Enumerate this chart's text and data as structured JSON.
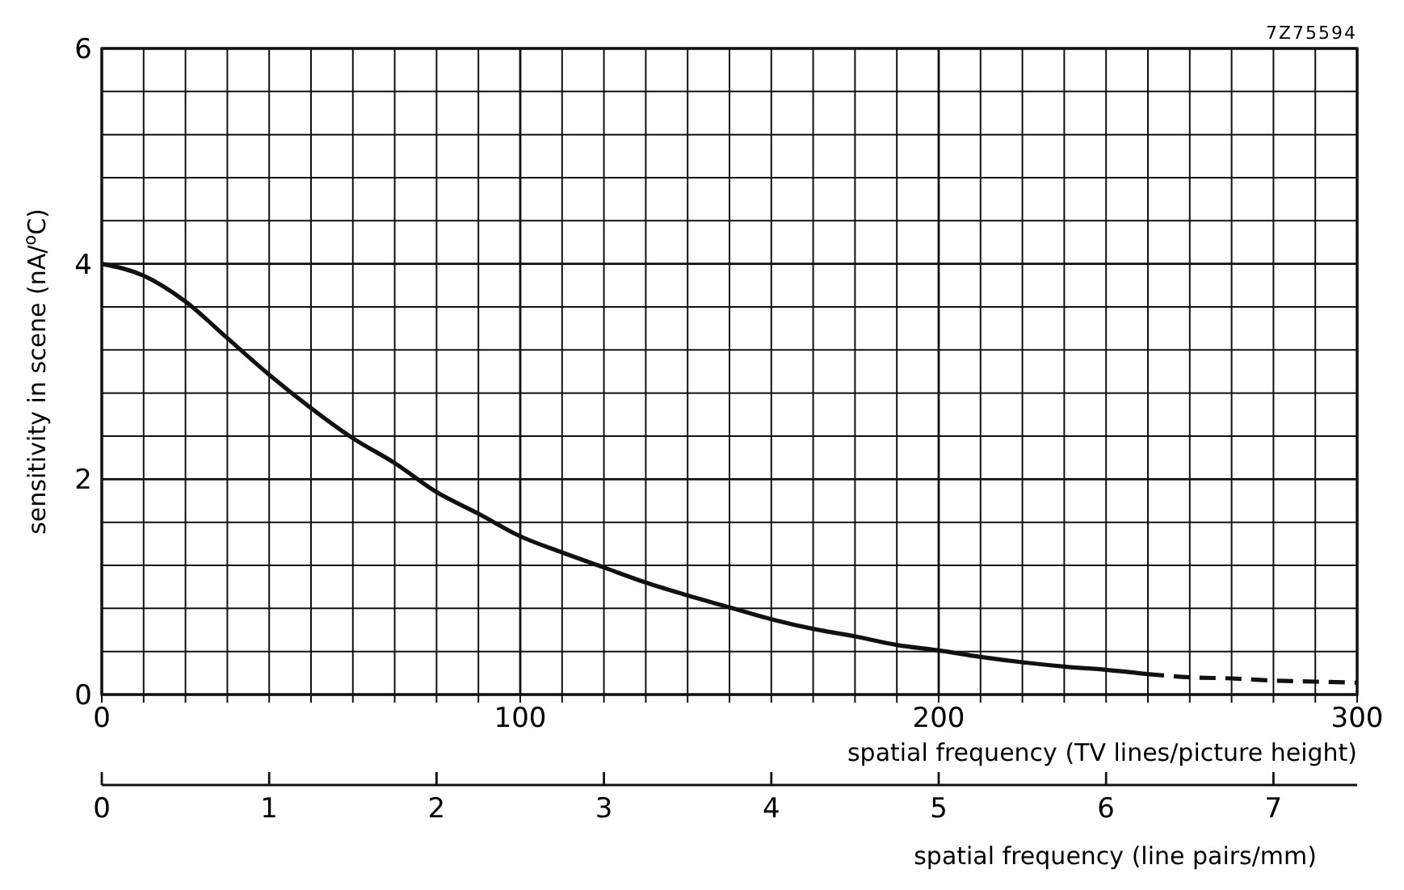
{
  "chart_data": {
    "type": "line",
    "ylabel": "sensitivity in scene (nA/$^{o}$C)",
    "xlabel": "spatial frequency (TV lines/picture height)",
    "x2label": "spatial frequency (line pairs/mm)",
    "annotations": [
      "7Z75594"
    ],
    "xlim": [
      0,
      300
    ],
    "xticks": [
      0,
      {
        "value": 10,
        "label": null
      },
      {
        "value": 20,
        "label": null
      },
      {
        "value": 30,
        "label": null
      },
      {
        "value": 40,
        "label": null
      },
      {
        "value": 50,
        "label": null
      },
      {
        "value": 60,
        "label": null
      },
      {
        "value": 70,
        "label": null
      },
      {
        "value": 80,
        "label": null
      },
      {
        "value": 90,
        "label": null
      },
      100,
      {
        "value": 110,
        "label": null
      },
      {
        "value": 120,
        "label": null
      },
      {
        "value": 130,
        "label": null
      },
      {
        "value": 140,
        "label": null
      },
      {
        "value": 150,
        "label": null
      },
      {
        "value": 160,
        "label": null
      },
      {
        "value": 170,
        "label": null
      },
      {
        "value": 180,
        "label": null
      },
      {
        "value": 190,
        "label": null
      },
      200,
      {
        "value": 210,
        "label": null
      },
      {
        "value": 220,
        "label": null
      },
      {
        "value": 230,
        "label": null
      },
      {
        "value": 240,
        "label": null
      },
      {
        "value": 250,
        "label": null
      },
      {
        "value": 260,
        "label": null
      },
      {
        "value": 270,
        "label": null
      },
      {
        "value": 280,
        "label": null
      },
      {
        "value": 290,
        "label": null
      },
      300
    ],
    "ylim": [
      0,
      6
    ],
    "yticks": [
      0,
      {
        "value": 0.4,
        "label": null
      },
      {
        "value": 0.8,
        "label": null
      },
      {
        "value": 1.2,
        "label": null
      },
      {
        "value": 1.6,
        "label": null
      },
      2,
      {
        "value": 2.4,
        "label": null
      },
      {
        "value": 2.8,
        "label": null
      },
      {
        "value": 3.2,
        "label": null
      },
      {
        "value": 3.6,
        "label": null
      },
      4,
      {
        "value": 4.4,
        "label": null
      },
      {
        "value": 4.8,
        "label": null
      },
      {
        "value": 5.2,
        "label": null
      },
      {
        "value": 5.6,
        "label": null
      },
      6
    ],
    "x2lim": [
      0,
      7.5
    ],
    "x2ticks": [
      0,
      1,
      2,
      3,
      4,
      5,
      6,
      7
    ],
    "grid": true,
    "marker": "none",
    "series": [
      {
        "color": "#111111",
        "line_style": "solid",
        "x": [
          0,
          10,
          20,
          30,
          40,
          50,
          60,
          70,
          80,
          90,
          100,
          110,
          120,
          130,
          140,
          150,
          160,
          170,
          180,
          190,
          200,
          210,
          220,
          230,
          240,
          250
        ],
        "values": [
          4.0,
          3.89,
          3.65,
          3.31,
          2.97,
          2.66,
          2.38,
          2.15,
          1.88,
          1.68,
          1.47,
          1.32,
          1.18,
          1.04,
          0.92,
          0.81,
          0.7,
          0.61,
          0.54,
          0.46,
          0.41,
          0.35,
          0.3,
          0.26,
          0.23,
          0.19
        ]
      },
      {
        "color": "#111111",
        "line_style": "dashed",
        "x": [
          250,
          260,
          270,
          280,
          290,
          300
        ],
        "values": [
          0.19,
          0.16,
          0.15,
          0.13,
          0.12,
          0.11
        ]
      }
    ]
  }
}
